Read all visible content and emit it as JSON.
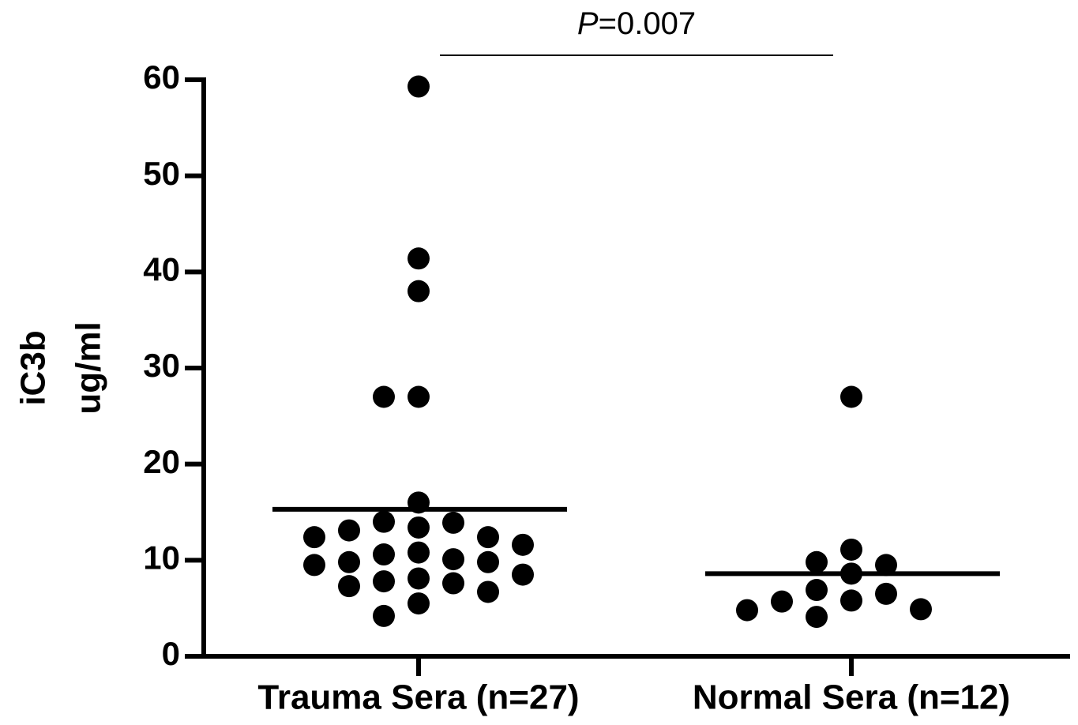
{
  "chart_data": {
    "type": "strip",
    "annotation": "P=0.007",
    "ylabel": [
      "iC3b",
      "ug/ml"
    ],
    "categories": [
      "Trauma Sera (n=27)",
      "Normal Sera (n=12)"
    ],
    "values": [
      [
        59.3,
        41.4,
        38.0,
        27.0,
        27.0,
        16.0,
        14.0,
        13.9,
        13.4,
        13.1,
        12.4,
        12.4,
        11.6,
        10.8,
        10.6,
        10.1,
        9.8,
        9.8,
        9.5,
        8.5,
        8.1,
        7.8,
        7.6,
        7.3,
        6.7,
        5.5,
        4.2
      ],
      [
        27.0,
        11.1,
        9.8,
        9.5,
        8.6,
        6.9,
        6.5,
        5.8,
        5.7,
        4.9,
        4.8,
        4.1
      ]
    ],
    "means": [
      15.3,
      8.6
    ],
    "color": "#000000",
    "ylim": [
      0,
      60
    ],
    "yticks": [
      0,
      10,
      20,
      30,
      40,
      50,
      60
    ]
  }
}
